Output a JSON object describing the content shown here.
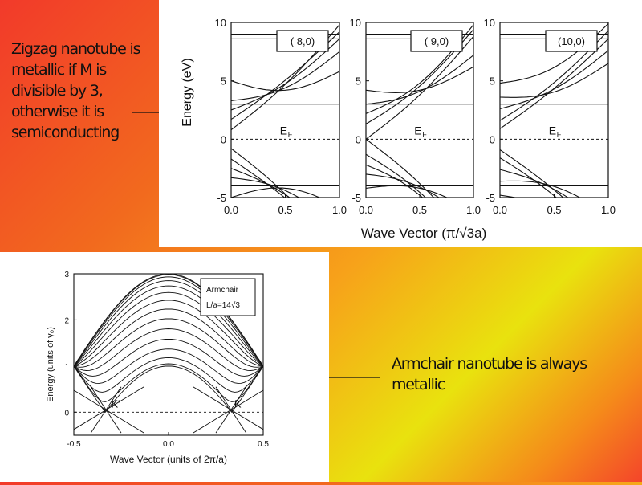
{
  "captions": {
    "zigzag": "Zigzag nanotube is metallic if M is divisible by 3, otherwise it is semiconducting",
    "armchair": "Armchair nanotube is always metallic"
  },
  "chart_data": [
    {
      "type": "line",
      "subpanels": [
        {
          "label": "( 8,0)",
          "fermi_label": "E",
          "fermi_sub": "F",
          "gap": true
        },
        {
          "label": "( 9,0)",
          "fermi_label": "E",
          "fermi_sub": "F",
          "gap": false
        },
        {
          "label": "(10,0)",
          "fermi_label": "E",
          "fermi_sub": "F",
          "gap": true
        }
      ],
      "xlabel": "Wave Vector (π/√3a)",
      "ylabel": "Energy (eV)",
      "xticks": [
        "0.0",
        "0.5",
        "1.0"
      ],
      "yticks": [
        "10",
        "5",
        "0",
        "-5"
      ],
      "xlim": [
        0,
        1
      ],
      "ylim": [
        -5,
        10
      ]
    },
    {
      "type": "line",
      "legend_title": "Armchair",
      "legend_sub": "L/a=14√3",
      "xlabel": "Wave Vector (units of 2π/a)",
      "ylabel": "Energy (units of γ₀)",
      "xticks": [
        "-0.5",
        "0.0",
        "0.5"
      ],
      "yticks": [
        "3",
        "2",
        "1",
        "0"
      ],
      "xlim": [
        -0.5,
        0.5
      ],
      "ylim": [
        -0.5,
        3
      ],
      "point_labels": [
        "K'",
        "K"
      ]
    }
  ]
}
